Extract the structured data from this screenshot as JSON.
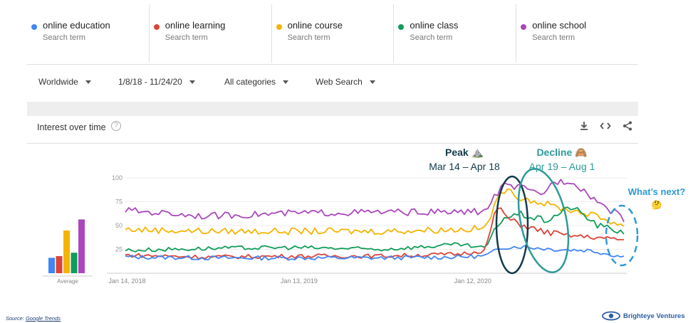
{
  "terms": [
    {
      "name": "online education",
      "sub": "Search term",
      "color": "#4285F4"
    },
    {
      "name": "online learning",
      "sub": "Search term",
      "color": "#DB4437"
    },
    {
      "name": "online course",
      "sub": "Search term",
      "color": "#F4B400"
    },
    {
      "name": "online class",
      "sub": "Search term",
      "color": "#0F9D58"
    },
    {
      "name": "online school",
      "sub": "Search term",
      "color": "#AB47BC"
    }
  ],
  "filters": {
    "region": "Worldwide",
    "date_range": "1/8/18 - 11/24/20",
    "category": "All categories",
    "search_type": "Web Search"
  },
  "panel": {
    "title": "Interest over time",
    "help_icon": "help-circle-icon",
    "tools": [
      "download-icon",
      "embed-code-icon",
      "share-icon"
    ]
  },
  "annotations": {
    "peak_title": "Peak ⛰️",
    "peak_dates": "Mar 14 – Apr 18",
    "decline_title": "Decline 🙈",
    "decline_dates": "Apr 19 – Aug 1",
    "next_title": "What’s next?",
    "next_emoji": "🤔",
    "peak_color": "#123a4a",
    "decline_color": "#2e9a9a",
    "next_color": "#2e9ad6"
  },
  "footer": {
    "source_label": "Source: ",
    "source_link": "Google Trends",
    "brand": "Brighteye Ventures"
  },
  "chart_data": {
    "type": "line",
    "ylim": [
      0,
      100
    ],
    "yticks": [
      "100",
      "75",
      "50",
      "25"
    ],
    "xticks": [
      "Jan 14, 2018",
      "Jan 13, 2019",
      "Jan 12, 2020"
    ],
    "average_label": "Average",
    "averages": {
      "online education": 18,
      "online learning": 20,
      "online course": 50,
      "online class": 24,
      "online school": 63
    },
    "series": [
      {
        "name": "online education",
        "anchors": [
          [
            2018.03,
            17
          ],
          [
            2018.5,
            16
          ],
          [
            2019.0,
            16
          ],
          [
            2019.5,
            16
          ],
          [
            2019.95,
            17
          ],
          [
            2020.1,
            18
          ],
          [
            2020.2,
            27
          ],
          [
            2020.3,
            28
          ],
          [
            2020.5,
            25
          ],
          [
            2020.7,
            24
          ],
          [
            2020.9,
            17
          ]
        ]
      },
      {
        "name": "online learning",
        "anchors": [
          [
            2018.03,
            19
          ],
          [
            2018.5,
            17
          ],
          [
            2019.0,
            18
          ],
          [
            2019.5,
            18
          ],
          [
            2019.95,
            20
          ],
          [
            2020.1,
            24
          ],
          [
            2020.17,
            70
          ],
          [
            2020.25,
            55
          ],
          [
            2020.4,
            45
          ],
          [
            2020.55,
            40
          ],
          [
            2020.7,
            38
          ],
          [
            2020.9,
            35
          ]
        ]
      },
      {
        "name": "online course",
        "anchors": [
          [
            2018.03,
            46
          ],
          [
            2018.5,
            44
          ],
          [
            2019.0,
            44
          ],
          [
            2019.5,
            44
          ],
          [
            2019.95,
            46
          ],
          [
            2020.1,
            47
          ],
          [
            2020.2,
            88
          ],
          [
            2020.3,
            80
          ],
          [
            2020.5,
            70
          ],
          [
            2020.7,
            62
          ],
          [
            2020.9,
            50
          ]
        ]
      },
      {
        "name": "online class",
        "anchors": [
          [
            2018.03,
            24
          ],
          [
            2018.5,
            26
          ],
          [
            2019.0,
            27
          ],
          [
            2019.5,
            25
          ],
          [
            2019.95,
            30
          ],
          [
            2020.1,
            26
          ],
          [
            2020.2,
            58
          ],
          [
            2020.3,
            62
          ],
          [
            2020.45,
            55
          ],
          [
            2020.6,
            70
          ],
          [
            2020.75,
            50
          ],
          [
            2020.9,
            43
          ]
        ]
      },
      {
        "name": "online school",
        "anchors": [
          [
            2018.03,
            66
          ],
          [
            2018.5,
            60
          ],
          [
            2019.0,
            63
          ],
          [
            2019.5,
            64
          ],
          [
            2019.95,
            64
          ],
          [
            2020.1,
            65
          ],
          [
            2020.2,
            92
          ],
          [
            2020.3,
            90
          ],
          [
            2020.42,
            82
          ],
          [
            2020.5,
            96
          ],
          [
            2020.6,
            97
          ],
          [
            2020.75,
            75
          ],
          [
            2020.9,
            57
          ]
        ]
      }
    ]
  }
}
